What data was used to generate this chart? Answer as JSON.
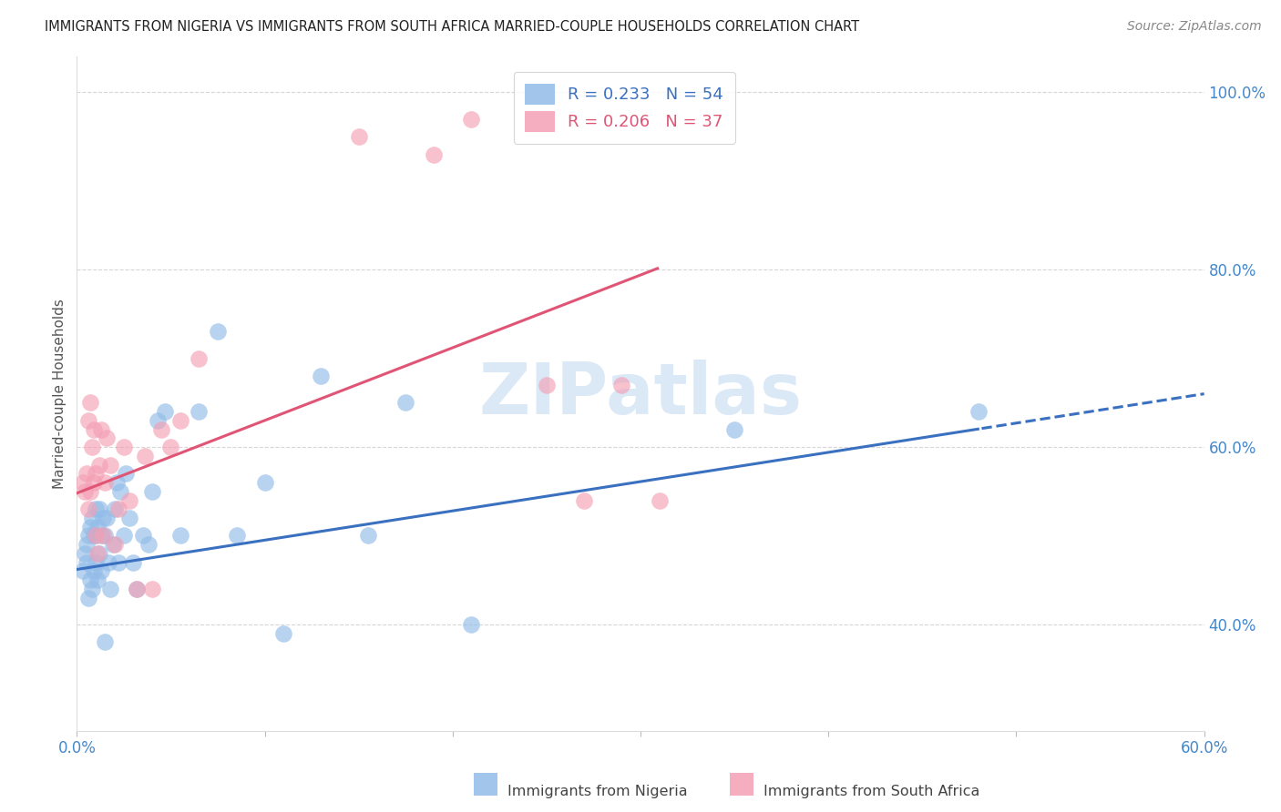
{
  "title": "IMMIGRANTS FROM NIGERIA VS IMMIGRANTS FROM SOUTH AFRICA MARRIED-COUPLE HOUSEHOLDS CORRELATION CHART",
  "source": "Source: ZipAtlas.com",
  "xlabel_nigeria": "Immigrants from Nigeria",
  "xlabel_sa": "Immigrants from South Africa",
  "ylabel": "Married-couple Households",
  "xlim": [
    0.0,
    0.6
  ],
  "ylim": [
    0.28,
    1.04
  ],
  "xticks": [
    0.0,
    0.1,
    0.2,
    0.3,
    0.4,
    0.5,
    0.6
  ],
  "xtick_labels": [
    "0.0%",
    "",
    "",
    "",
    "",
    "",
    "60.0%"
  ],
  "yticks": [
    0.4,
    0.6,
    0.8,
    1.0
  ],
  "ytick_labels": [
    "40.0%",
    "60.0%",
    "80.0%",
    "100.0%"
  ],
  "nigeria_color": "#92bce8",
  "sa_color": "#f4a0b5",
  "nigeria_line_color": "#3a70c0",
  "sa_line_color": "#e05575",
  "watermark": "ZIPatlas",
  "legend_r_nigeria": "0.233",
  "legend_n_nigeria": "54",
  "legend_r_sa": "0.206",
  "legend_n_sa": "37",
  "nigeria_x": [
    0.003,
    0.004,
    0.005,
    0.005,
    0.006,
    0.006,
    0.007,
    0.007,
    0.008,
    0.008,
    0.009,
    0.009,
    0.01,
    0.01,
    0.01,
    0.011,
    0.011,
    0.012,
    0.012,
    0.013,
    0.013,
    0.014,
    0.015,
    0.015,
    0.016,
    0.017,
    0.018,
    0.019,
    0.02,
    0.021,
    0.022,
    0.023,
    0.025,
    0.026,
    0.028,
    0.03,
    0.032,
    0.035,
    0.038,
    0.04,
    0.043,
    0.047,
    0.055,
    0.065,
    0.075,
    0.085,
    0.1,
    0.11,
    0.13,
    0.155,
    0.175,
    0.21,
    0.35,
    0.48
  ],
  "nigeria_y": [
    0.46,
    0.48,
    0.47,
    0.49,
    0.43,
    0.5,
    0.45,
    0.51,
    0.44,
    0.52,
    0.46,
    0.5,
    0.47,
    0.5,
    0.53,
    0.45,
    0.51,
    0.48,
    0.53,
    0.46,
    0.5,
    0.52,
    0.38,
    0.5,
    0.52,
    0.47,
    0.44,
    0.49,
    0.53,
    0.56,
    0.47,
    0.55,
    0.5,
    0.57,
    0.52,
    0.47,
    0.44,
    0.5,
    0.49,
    0.55,
    0.63,
    0.64,
    0.5,
    0.64,
    0.73,
    0.5,
    0.56,
    0.39,
    0.68,
    0.5,
    0.65,
    0.4,
    0.62,
    0.64
  ],
  "sa_x": [
    0.003,
    0.004,
    0.005,
    0.006,
    0.006,
    0.007,
    0.007,
    0.008,
    0.009,
    0.009,
    0.01,
    0.01,
    0.011,
    0.012,
    0.013,
    0.014,
    0.015,
    0.016,
    0.018,
    0.02,
    0.022,
    0.025,
    0.028,
    0.032,
    0.036,
    0.04,
    0.045,
    0.05,
    0.055,
    0.065,
    0.15,
    0.19,
    0.21,
    0.25,
    0.27,
    0.29,
    0.31
  ],
  "sa_y": [
    0.56,
    0.55,
    0.57,
    0.53,
    0.63,
    0.65,
    0.55,
    0.6,
    0.56,
    0.62,
    0.5,
    0.57,
    0.48,
    0.58,
    0.62,
    0.5,
    0.56,
    0.61,
    0.58,
    0.49,
    0.53,
    0.6,
    0.54,
    0.44,
    0.59,
    0.44,
    0.62,
    0.6,
    0.63,
    0.7,
    0.95,
    0.93,
    0.97,
    0.67,
    0.54,
    0.67,
    0.54
  ],
  "nigeria_line_intercept": 0.462,
  "nigeria_line_slope": 0.33,
  "sa_line_intercept": 0.548,
  "sa_line_slope": 0.82,
  "nigeria_solid_max": 0.48,
  "sa_solid_max": 0.31
}
